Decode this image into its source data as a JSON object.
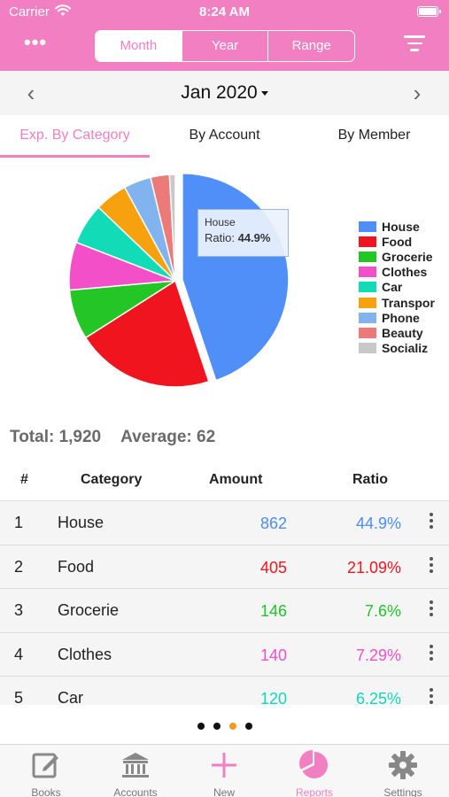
{
  "status": {
    "carrier": "Carrier",
    "time": "8:24 AM"
  },
  "header": {
    "more": "•••",
    "segments": [
      {
        "label": "Month",
        "active": true
      },
      {
        "label": "Year",
        "active": false
      },
      {
        "label": "Range",
        "active": false
      }
    ]
  },
  "month": {
    "prev": "‹",
    "title": "Jan 2020",
    "next": "›"
  },
  "tabs": [
    "Exp. By Category",
    "By Account",
    "By Member"
  ],
  "tooltip": {
    "category": "House",
    "ratio_label": "Ratio:",
    "ratio_value": "44.9%"
  },
  "totals": {
    "total": "Total: 1,920",
    "average": "Average: 62"
  },
  "table": {
    "headers": {
      "num": "#",
      "category": "Category",
      "amount": "Amount",
      "ratio": "Ratio"
    },
    "rows": [
      {
        "num": "1",
        "category": "House",
        "amount": "862",
        "ratio": "44.9%",
        "color": "#4a8ef0"
      },
      {
        "num": "2",
        "category": "Food",
        "amount": "405",
        "ratio": "21.09%",
        "color": "#f0141e"
      },
      {
        "num": "3",
        "category": "Grocerie",
        "amount": "146",
        "ratio": "7.6%",
        "color": "#22c22a"
      },
      {
        "num": "4",
        "category": "Clothes",
        "amount": "140",
        "ratio": "7.29%",
        "color": "#f04fc8"
      },
      {
        "num": "5",
        "category": "Car",
        "amount": "120",
        "ratio": "6.25%",
        "color": "#13d6b6"
      }
    ]
  },
  "pager": {
    "count": 4,
    "active_index": 2
  },
  "tabbar": [
    {
      "label": "Books",
      "icon": "edit-book-icon",
      "active": false
    },
    {
      "label": "Accounts",
      "icon": "bank-icon",
      "active": false
    },
    {
      "label": "New",
      "icon": "plus-icon",
      "active": false
    },
    {
      "label": "Reports",
      "icon": "pie-chart-icon",
      "active": true
    },
    {
      "label": "Settings",
      "icon": "gear-icon",
      "active": false
    }
  ],
  "chart_data": {
    "type": "pie",
    "categories": [
      "House",
      "Food",
      "Grocerie",
      "Clothes",
      "Car",
      "Transpor",
      "Phone",
      "Beauty",
      "Socializ"
    ],
    "values": [
      862,
      405,
      146,
      140,
      120,
      95,
      80,
      55,
      17
    ],
    "colors": [
      "#4f8ff7",
      "#f0141e",
      "#24c626",
      "#f24fc9",
      "#12dbb8",
      "#f8a10e",
      "#81b4ee",
      "#ec7a78",
      "#c8c8c8"
    ],
    "highlighted": "House",
    "legend_position": "right"
  }
}
